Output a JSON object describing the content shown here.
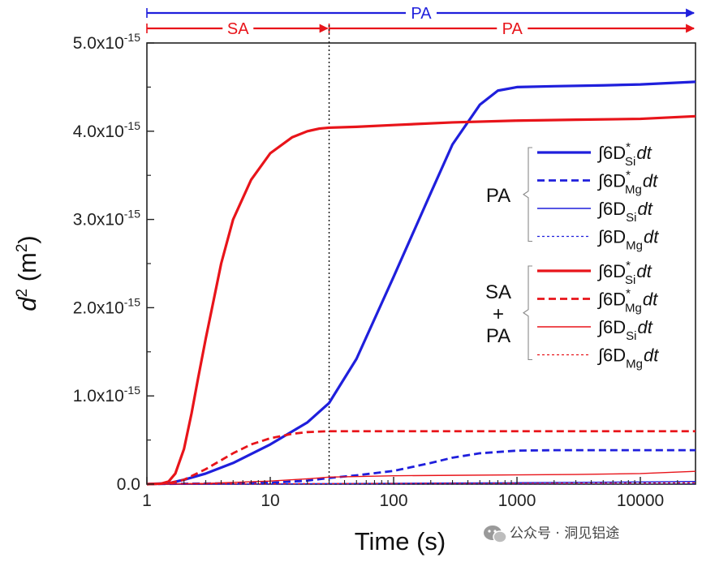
{
  "chart_data": {
    "type": "line",
    "xscale": "log",
    "xlabel": "Time (s)",
    "ylabel": "d",
    "ylabel_sup": "2",
    "ylabel_unit_open": " (m",
    "ylabel_unit_sup": "2",
    "ylabel_unit_close": ")",
    "xlim": [
      1,
      28000
    ],
    "ylim": [
      0,
      5e-15
    ],
    "x_ticks": [
      {
        "value": 1,
        "label": "1"
      },
      {
        "value": 10,
        "label": "10"
      },
      {
        "value": 100,
        "label": "100"
      },
      {
        "value": 1000,
        "label": "1000"
      },
      {
        "value": 10000,
        "label": "10000"
      }
    ],
    "y_ticks": [
      {
        "value": 0,
        "base": "0.0",
        "exp": ""
      },
      {
        "value": 1e-15,
        "base": "1.0x10",
        "exp": "-15"
      },
      {
        "value": 2e-15,
        "base": "2.0x10",
        "exp": "-15"
      },
      {
        "value": 3e-15,
        "base": "3.0x10",
        "exp": "-15"
      },
      {
        "value": 4e-15,
        "base": "4.0x10",
        "exp": "-15"
      },
      {
        "value": 5e-15,
        "base": "5.0x10",
        "exp": "-15"
      }
    ],
    "vline_x": 30,
    "phases": [
      {
        "label": "PA",
        "start": 1,
        "end": 28000,
        "row": 0,
        "color": "#1f1fdc"
      },
      {
        "label": "SA",
        "start": 1,
        "end": 30,
        "row": 1,
        "color": "#e8141a"
      },
      {
        "label": "PA",
        "start": 30,
        "end": 28000,
        "row": 1,
        "color": "#e8141a"
      }
    ],
    "series": [
      {
        "name": "PA ∫6D*Si dt",
        "color": "#1f1fdc",
        "width": 3.2,
        "dash": "",
        "x": [
          1,
          1.5,
          2,
          3,
          5,
          10,
          20,
          30,
          50,
          100,
          200,
          300,
          500,
          700,
          1000,
          2000,
          5000,
          10000,
          28000
        ],
        "y": [
          0,
          1e-17,
          5e-17,
          1.2e-16,
          2.4e-16,
          4.5e-16,
          7e-16,
          9.2e-16,
          1.42e-15,
          2.35e-15,
          3.3e-15,
          3.85e-15,
          4.3e-15,
          4.46e-15,
          4.5e-15,
          4.51e-15,
          4.52e-15,
          4.53e-15,
          4.56e-15
        ]
      },
      {
        "name": "PA ∫6D*Mg dt",
        "color": "#1f1fdc",
        "width": 2.8,
        "dash": "9,5",
        "x": [
          1,
          10,
          20,
          30,
          50,
          100,
          200,
          300,
          500,
          1000,
          2000,
          5000,
          10000,
          28000
        ],
        "y": [
          0,
          1.5e-17,
          4e-17,
          7e-17,
          1e-16,
          1.5e-16,
          2.4e-16,
          3e-16,
          3.5e-16,
          3.8e-16,
          3.85e-16,
          3.85e-16,
          3.85e-16,
          3.85e-16
        ]
      },
      {
        "name": "PA ∫6DSi dt",
        "color": "#1f1fdc",
        "width": 1.4,
        "dash": "",
        "x": [
          1,
          10,
          30,
          100,
          300,
          1000,
          3000,
          10000,
          28000
        ],
        "y": [
          0,
          2e-18,
          6e-18,
          1e-17,
          1.3e-17,
          1.6e-17,
          2e-17,
          2.5e-17,
          3e-17
        ]
      },
      {
        "name": "PA ∫6DMg dt",
        "color": "#1f1fdc",
        "width": 1.3,
        "dash": "3,3",
        "x": [
          1,
          10,
          100,
          1000,
          10000,
          28000
        ],
        "y": [
          0,
          1e-18,
          2e-18,
          3e-18,
          4e-18,
          5e-18
        ]
      },
      {
        "name": "SA+PA ∫6D*Si dt",
        "color": "#e8141a",
        "width": 3.2,
        "dash": "",
        "x": [
          1,
          1.3,
          1.5,
          1.7,
          2,
          2.3,
          2.6,
          3,
          4,
          5,
          7,
          10,
          15,
          20,
          25,
          30,
          50,
          100,
          300,
          1000,
          3000,
          10000,
          28000
        ],
        "y": [
          0,
          5e-18,
          3e-17,
          1.2e-16,
          4e-16,
          8e-16,
          1.2e-15,
          1.65e-15,
          2.5e-15,
          3e-15,
          3.45e-15,
          3.75e-15,
          3.93e-15,
          4e-15,
          4.03e-15,
          4.04e-15,
          4.05e-15,
          4.07e-15,
          4.1e-15,
          4.12e-15,
          4.13e-15,
          4.14e-15,
          4.17e-15
        ]
      },
      {
        "name": "SA+PA ∫6D*Mg dt",
        "color": "#e8141a",
        "width": 2.8,
        "dash": "9,5",
        "x": [
          1,
          1.5,
          2,
          3,
          5,
          7,
          10,
          15,
          20,
          30,
          100,
          1000,
          10000,
          28000
        ],
        "y": [
          0,
          1e-17,
          5e-17,
          1.7e-16,
          3.5e-16,
          4.5e-16,
          5.2e-16,
          5.7e-16,
          5.9e-16,
          6e-16,
          6e-16,
          6e-16,
          6e-16,
          6e-16
        ]
      },
      {
        "name": "SA+PA ∫6DSi dt",
        "color": "#e8141a",
        "width": 1.4,
        "dash": "",
        "x": [
          1,
          3,
          10,
          20,
          30,
          100,
          300,
          1000,
          3000,
          10000,
          28000
        ],
        "y": [
          0,
          8e-18,
          3.5e-17,
          6e-17,
          8e-17,
          9.5e-17,
          1e-16,
          1.05e-16,
          1.1e-16,
          1.2e-16,
          1.45e-16
        ]
      },
      {
        "name": "SA+PA ∫6DMg dt",
        "color": "#e8141a",
        "width": 1.3,
        "dash": "3,3",
        "x": [
          1,
          10,
          100,
          1000,
          10000,
          28000
        ],
        "y": [
          0,
          4e-18,
          8e-18,
          1e-17,
          1.2e-17,
          1.5e-17
        ]
      }
    ],
    "legend": {
      "groups": [
        {
          "label_lines": [
            "PA"
          ],
          "color": "#1f1fdc"
        },
        {
          "label_lines": [
            "SA",
            "+",
            "PA"
          ],
          "color": "#e8141a"
        }
      ],
      "entries": [
        {
          "group": 0,
          "sub": "Si",
          "star": true,
          "width": 3.2,
          "dash": ""
        },
        {
          "group": 0,
          "sub": "Mg",
          "star": true,
          "width": 2.8,
          "dash": "9,5"
        },
        {
          "group": 0,
          "sub": "Si",
          "star": false,
          "width": 1.4,
          "dash": ""
        },
        {
          "group": 0,
          "sub": "Mg",
          "star": false,
          "width": 1.3,
          "dash": "3,3"
        },
        {
          "group": 1,
          "sub": "Si",
          "star": true,
          "width": 3.2,
          "dash": ""
        },
        {
          "group": 1,
          "sub": "Mg",
          "star": true,
          "width": 2.8,
          "dash": "9,5"
        },
        {
          "group": 1,
          "sub": "Si",
          "star": false,
          "width": 1.4,
          "dash": ""
        },
        {
          "group": 1,
          "sub": "Mg",
          "star": false,
          "width": 1.3,
          "dash": "3,3"
        }
      ],
      "prefix": "∫6D",
      "star_char": "*",
      "suffix": "dt"
    }
  },
  "watermark": {
    "text": "公众号 · 洞见铝途",
    "icon": "wechat-icon"
  }
}
